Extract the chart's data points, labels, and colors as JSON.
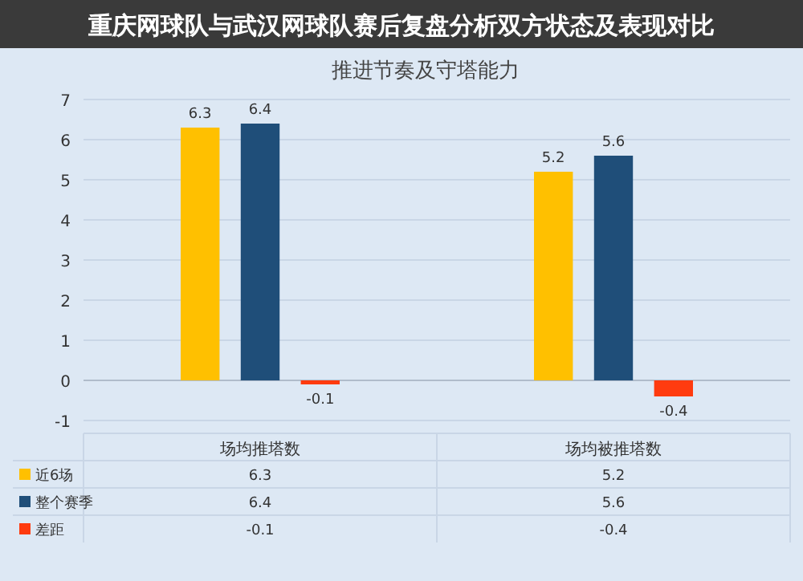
{
  "chart_data": {
    "type": "bar",
    "title": "推进节奏及守塔能力",
    "subtitle": "重庆网球队与武汉网球队赛后复盘分析双方状态及表现对比",
    "categories": [
      "场均推塔数",
      "场均被推塔数"
    ],
    "series": [
      {
        "name": "近6场",
        "color": "#ffc000",
        "values": [
          6.3,
          5.2
        ]
      },
      {
        "name": "整个赛季",
        "color": "#1f4e79",
        "values": [
          6.4,
          5.6
        ]
      },
      {
        "name": "差距",
        "color": "#ff3b0f",
        "values": [
          -0.1,
          -0.4
        ]
      }
    ],
    "annotations": [
      "6.3",
      "6.4",
      "-0.1",
      "5.2",
      "5.6",
      "-0.4"
    ],
    "ylim": [
      -1,
      7
    ],
    "yticks": [
      -1,
      0,
      1,
      2,
      3,
      4,
      5,
      6,
      7
    ],
    "grid": "y",
    "data_labels": true,
    "legend": "bottom"
  }
}
